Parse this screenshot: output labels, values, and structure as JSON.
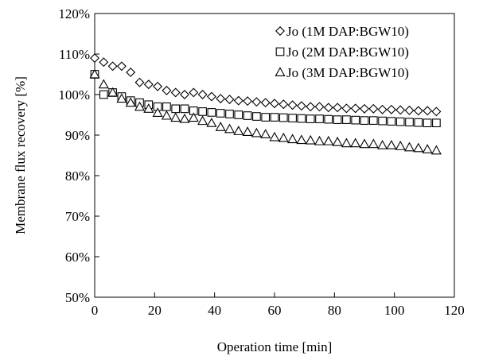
{
  "chart_data": {
    "type": "scatter",
    "title": "",
    "xlabel": "Operation time [min]",
    "ylabel": "Membrane flux recovery [%]",
    "xlim": [
      0,
      120
    ],
    "ylim": [
      50,
      120
    ],
    "xticks": [
      0,
      20,
      40,
      60,
      80,
      100,
      120
    ],
    "yticks": [
      50,
      60,
      70,
      80,
      90,
      100,
      110,
      120
    ],
    "yticks_format": "percent",
    "grid": false,
    "legend_position": "top-right",
    "series": [
      {
        "name": "Jo (1M DAP:BGW10)",
        "marker": "diamond",
        "color": "#000000",
        "x": [
          0,
          3,
          6,
          9,
          12,
          15,
          18,
          21,
          24,
          27,
          30,
          33,
          36,
          39,
          42,
          45,
          48,
          51,
          54,
          57,
          60,
          63,
          66,
          69,
          72,
          75,
          78,
          81,
          84,
          87,
          90,
          93,
          96,
          99,
          102,
          105,
          108,
          111,
          114
        ],
        "y": [
          109,
          108,
          107,
          107,
          105.5,
          103,
          102.5,
          102,
          101,
          100.5,
          100,
          100.5,
          100,
          99.5,
          99,
          98.8,
          98.5,
          98.4,
          98.2,
          98,
          97.8,
          97.6,
          97.4,
          97.2,
          97,
          97,
          96.8,
          96.8,
          96.6,
          96.6,
          96.5,
          96.5,
          96.3,
          96.3,
          96.2,
          96.1,
          96,
          96,
          95.8
        ]
      },
      {
        "name": "Jo (2M DAP:BGW10)",
        "marker": "square",
        "color": "#000000",
        "x": [
          0,
          3,
          6,
          9,
          12,
          15,
          18,
          21,
          24,
          27,
          30,
          33,
          36,
          39,
          42,
          45,
          48,
          51,
          54,
          57,
          60,
          63,
          66,
          69,
          72,
          75,
          78,
          81,
          84,
          87,
          90,
          93,
          96,
          99,
          102,
          105,
          108,
          111,
          114
        ],
        "y": [
          105,
          100,
          100.5,
          99.5,
          98.5,
          98,
          97.5,
          97,
          97,
          96.5,
          96.5,
          96,
          95.8,
          95.6,
          95.4,
          95.2,
          95,
          94.8,
          94.6,
          94.4,
          94.4,
          94.3,
          94.2,
          94.1,
          94,
          94,
          93.9,
          93.8,
          93.8,
          93.7,
          93.6,
          93.6,
          93.5,
          93.4,
          93.3,
          93.2,
          93.1,
          93,
          93
        ]
      },
      {
        "name": "Jo (3M DAP:BGW10)",
        "marker": "triangle",
        "color": "#000000",
        "x": [
          0,
          3,
          6,
          9,
          12,
          15,
          18,
          21,
          24,
          27,
          30,
          33,
          36,
          39,
          42,
          45,
          48,
          51,
          54,
          57,
          60,
          63,
          66,
          69,
          72,
          75,
          78,
          81,
          84,
          87,
          90,
          93,
          96,
          99,
          102,
          105,
          108,
          111,
          114
        ],
        "y": [
          105,
          102.5,
          100.5,
          99,
          98,
          97,
          96.5,
          95.5,
          94.8,
          94.3,
          94,
          94.3,
          93.5,
          93,
          92,
          91.5,
          91,
          90.8,
          90.5,
          90.2,
          89.5,
          89.3,
          89,
          88.8,
          88.7,
          88.5,
          88.5,
          88.3,
          88,
          88,
          87.8,
          87.8,
          87.5,
          87.5,
          87.3,
          87,
          86.8,
          86.5,
          86.2
        ]
      }
    ]
  }
}
